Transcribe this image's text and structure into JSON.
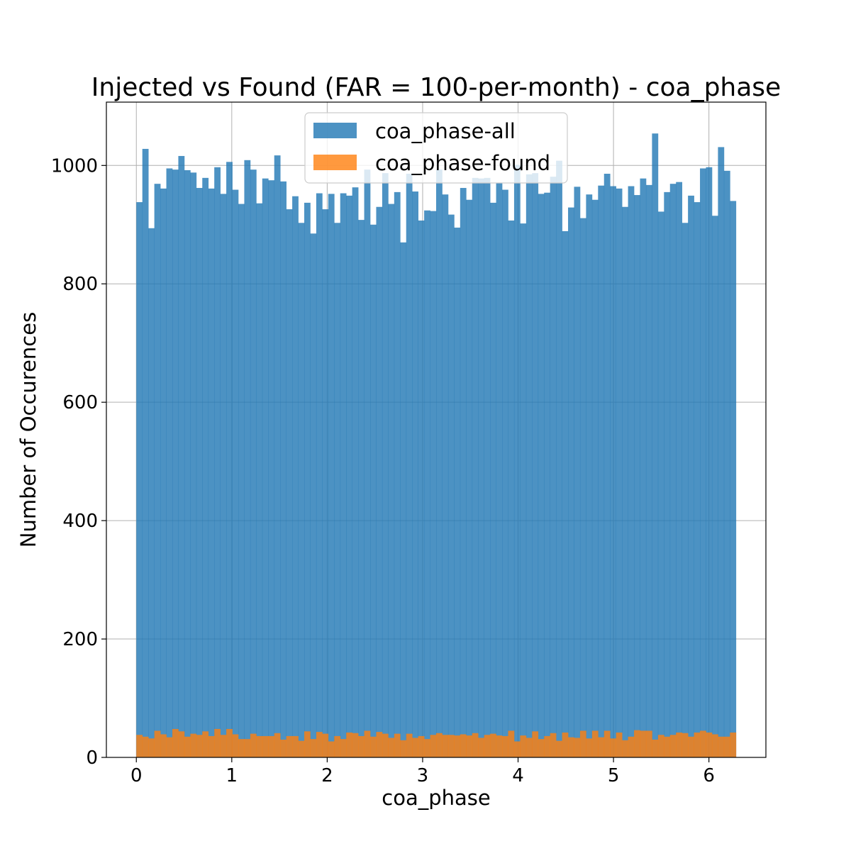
{
  "chart_data": {
    "type": "histogram",
    "title": "Injected vs Found (FAR = 100-per-month) - coa_phase",
    "xlabel": "coa_phase",
    "ylabel": "Number of Occurences",
    "xlim": [
      -0.314,
      6.597
    ],
    "ylim": [
      0,
      1107
    ],
    "x_ticks": [
      0,
      1,
      2,
      3,
      4,
      5,
      6
    ],
    "y_ticks": [
      0,
      200,
      400,
      600,
      800,
      1000
    ],
    "grid": true,
    "legend_position": "upper center",
    "bins": {
      "start": 0,
      "end": 6.2832,
      "count": 100
    },
    "series": [
      {
        "name": "coa_phase-all",
        "color": "#1f77b4",
        "alpha": 0.8,
        "values": [
          938,
          1028,
          894,
          969,
          961,
          995,
          993,
          1016,
          992,
          988,
          962,
          979,
          961,
          997,
          952,
          1006,
          959,
          935,
          1009,
          993,
          936,
          978,
          975,
          1017,
          973,
          926,
          948,
          903,
          937,
          885,
          953,
          926,
          952,
          903,
          953,
          949,
          963,
          908,
          993,
          900,
          930,
          987,
          935,
          955,
          870,
          986,
          956,
          907,
          924,
          923,
          993,
          951,
          917,
          895,
          962,
          942,
          979,
          978,
          979,
          937,
          971,
          959,
          907,
          1001,
          902,
          985,
          987,
          952,
          954,
          981,
          1008,
          889,
          929,
          964,
          911,
          951,
          942,
          966,
          986,
          965,
          961,
          930,
          965,
          950,
          978,
          967,
          1054,
          922,
          955,
          969,
          972,
          903,
          949,
          938,
          995,
          997,
          915,
          1031,
          991,
          940
        ]
      },
      {
        "name": "coa_phase-found",
        "color": "#ff7f0e",
        "alpha": 0.8,
        "values": [
          38,
          35,
          32,
          45,
          39,
          34,
          48,
          44,
          35,
          40,
          38,
          44,
          36,
          48,
          38,
          48,
          39,
          31,
          31,
          40,
          36,
          36,
          36,
          41,
          30,
          36,
          36,
          28,
          44,
          31,
          43,
          40,
          27,
          36,
          31,
          42,
          41,
          36,
          45,
          35,
          43,
          40,
          33,
          40,
          29,
          40,
          33,
          36,
          31,
          38,
          41,
          38,
          38,
          37,
          39,
          37,
          41,
          33,
          38,
          40,
          37,
          36,
          45,
          27,
          37,
          33,
          44,
          31,
          36,
          41,
          28,
          42,
          34,
          33,
          45,
          32,
          45,
          34,
          45,
          32,
          42,
          29,
          35,
          46,
          45,
          45,
          30,
          38,
          35,
          38,
          42,
          41,
          35,
          42,
          45,
          42,
          39,
          35,
          35,
          42
        ]
      }
    ]
  }
}
